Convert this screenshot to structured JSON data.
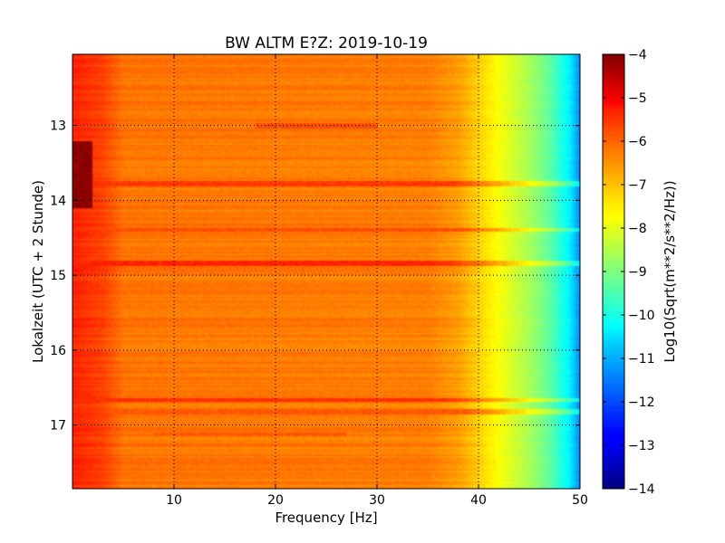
{
  "chart_data": {
    "type": "heatmap",
    "title": "BW ALTM E?Z: 2019-10-19",
    "xlabel": "Frequency [Hz]",
    "ylabel": "Lokalzeit (UTC + 2 Stunde)",
    "xlim": [
      0,
      50
    ],
    "ylim": [
      12.05,
      17.85
    ],
    "y_inverted": true,
    "x_ticks": [
      10,
      20,
      30,
      40,
      50
    ],
    "x_tick_labels": [
      "10",
      "20",
      "30",
      "40",
      "50"
    ],
    "y_ticks": [
      13,
      14,
      15,
      16,
      17
    ],
    "y_tick_labels": [
      "13",
      "14",
      "15",
      "16",
      "17"
    ],
    "grid": true,
    "colormap": "jet",
    "colorbar": {
      "label": "Log10(Sqrt(m**2/s**2/Hz))",
      "range": [
        -14,
        -4
      ],
      "ticks": [
        -4,
        -5,
        -6,
        -7,
        -8,
        -9,
        -10,
        -11,
        -12,
        -13,
        -14
      ],
      "tick_labels": [
        "−4",
        "−5",
        "−6",
        "−7",
        "−8",
        "−9",
        "−10",
        "−11",
        "−12",
        "−13",
        "−14"
      ]
    },
    "background_profile": [
      {
        "f": 0,
        "v": -5.6
      },
      {
        "f": 3,
        "v": -5.9
      },
      {
        "f": 5,
        "v": -6.4
      },
      {
        "f": 35,
        "v": -6.5
      },
      {
        "f": 38,
        "v": -6.8
      },
      {
        "f": 40,
        "v": -7.3
      },
      {
        "f": 42,
        "v": -7.8
      },
      {
        "f": 45,
        "v": -8.6
      },
      {
        "f": 47,
        "v": -9.3
      },
      {
        "f": 49,
        "v": -10.4
      },
      {
        "f": 50,
        "v": -11.4
      }
    ],
    "bands": [
      {
        "t": 13.78,
        "f_range": [
          0,
          50
        ],
        "v": -5.8
      },
      {
        "t": 14.4,
        "f_range": [
          0,
          50
        ],
        "v": -6.0
      },
      {
        "t": 14.84,
        "f_range": [
          0,
          50
        ],
        "v": -5.6
      },
      {
        "t": 16.67,
        "f_range": [
          0,
          50
        ],
        "v": -5.7
      },
      {
        "t": 16.82,
        "f_range": [
          0,
          50
        ],
        "v": -6.1
      },
      {
        "t": 13.0,
        "f_range": [
          18,
          30
        ],
        "v": -6.0
      },
      {
        "t": 17.12,
        "f_range": [
          8,
          27
        ],
        "v": -6.1
      }
    ],
    "low_freq_hotspot": {
      "t_range": [
        13.2,
        14.1
      ],
      "f_range": [
        0,
        2
      ],
      "v": -4.4
    }
  }
}
